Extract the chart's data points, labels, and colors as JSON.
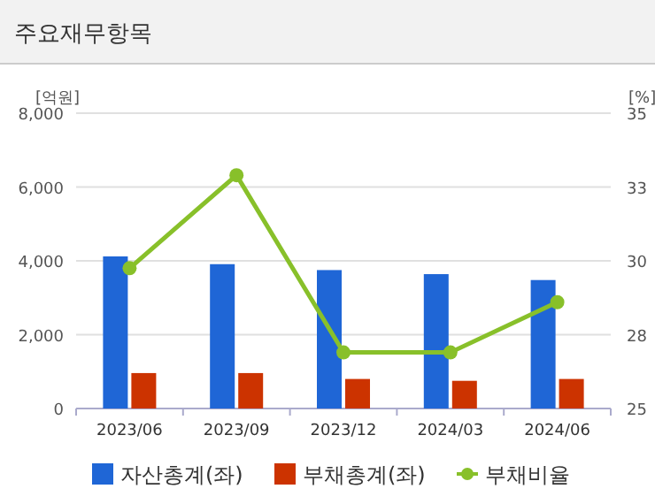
{
  "chart_data": {
    "type": "bar",
    "title": "주요재무항목",
    "ylabel": "[억원]",
    "y2label": "[%]",
    "categories": [
      "2023/06",
      "2023/09",
      "2023/12",
      "2024/03",
      "2024/06"
    ],
    "series": [
      {
        "name": "자산총계(좌)",
        "color": "#1f66d6",
        "values": [
          4120,
          3910,
          3750,
          3640,
          3480
        ]
      },
      {
        "name": "부채총계(좌)",
        "color": "#cc3300",
        "values": [
          960,
          960,
          800,
          750,
          800
        ]
      },
      {
        "name": "부채비율",
        "type": "line",
        "axis": "y2",
        "color": "#88c02a",
        "values": [
          29.75,
          32.9,
          26.9,
          26.9,
          28.6
        ]
      }
    ],
    "ylim": [
      0,
      8000
    ],
    "yticks": [
      {
        "value": 0,
        "label": "0"
      },
      {
        "value": 2000,
        "label": "2,000"
      },
      {
        "value": 4000,
        "label": "4,000"
      },
      {
        "value": 6000,
        "label": "6,000"
      },
      {
        "value": 8000,
        "label": "8,000"
      }
    ],
    "y2lim": [
      25,
      35
    ],
    "y2ticks": [
      25,
      {
        "value": 27.5,
        "label": "28"
      },
      30,
      {
        "value": 32.5,
        "label": "33"
      },
      35
    ],
    "grid": "y",
    "legend": "bottom",
    "marker": "circle"
  }
}
